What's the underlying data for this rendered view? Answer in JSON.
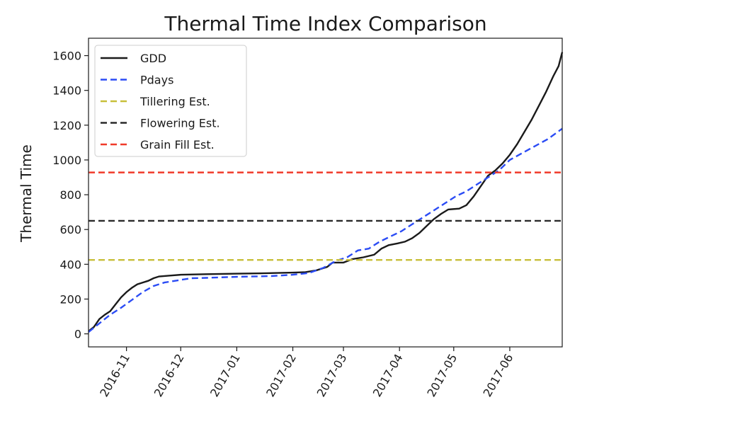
{
  "chart_data": {
    "type": "line",
    "title": "Thermal Time Index Comparison",
    "xlabel": "",
    "ylabel": "Thermal Time",
    "x_range": [
      "2016-10-11",
      "2017-06-30"
    ],
    "ylim": [
      -75,
      1700
    ],
    "y_ticks": [
      0,
      200,
      400,
      600,
      800,
      1000,
      1200,
      1400,
      1600
    ],
    "x_ticks": [
      {
        "date": "2016-11-01",
        "label": "2016-11"
      },
      {
        "date": "2016-12-01",
        "label": "2016-12"
      },
      {
        "date": "2017-01-01",
        "label": "2017-01"
      },
      {
        "date": "2017-02-01",
        "label": "2017-02"
      },
      {
        "date": "2017-03-01",
        "label": "2017-03"
      },
      {
        "date": "2017-04-01",
        "label": "2017-04"
      },
      {
        "date": "2017-05-01",
        "label": "2017-05"
      },
      {
        "date": "2017-06-01",
        "label": "2017-06"
      }
    ],
    "grid": false,
    "legend_position": "upper-left",
    "series": [
      {
        "name": "GDD",
        "color": "#1a1a1a",
        "style": "solid",
        "points": [
          [
            "2016-10-11",
            15
          ],
          [
            "2016-10-14",
            40
          ],
          [
            "2016-10-17",
            85
          ],
          [
            "2016-10-20",
            110
          ],
          [
            "2016-10-23",
            130
          ],
          [
            "2016-10-26",
            170
          ],
          [
            "2016-10-29",
            210
          ],
          [
            "2016-11-01",
            240
          ],
          [
            "2016-11-04",
            265
          ],
          [
            "2016-11-07",
            285
          ],
          [
            "2016-11-10",
            295
          ],
          [
            "2016-11-13",
            305
          ],
          [
            "2016-11-16",
            320
          ],
          [
            "2016-11-19",
            330
          ],
          [
            "2016-11-25",
            335
          ],
          [
            "2016-12-01",
            340
          ],
          [
            "2016-12-15",
            343
          ],
          [
            "2017-01-01",
            346
          ],
          [
            "2017-01-15",
            348
          ],
          [
            "2017-02-01",
            352
          ],
          [
            "2017-02-08",
            355
          ],
          [
            "2017-02-14",
            365
          ],
          [
            "2017-02-20",
            385
          ],
          [
            "2017-02-23",
            410
          ],
          [
            "2017-03-01",
            410
          ],
          [
            "2017-03-06",
            430
          ],
          [
            "2017-03-12",
            440
          ],
          [
            "2017-03-18",
            455
          ],
          [
            "2017-03-22",
            490
          ],
          [
            "2017-03-26",
            510
          ],
          [
            "2017-03-31",
            520
          ],
          [
            "2017-04-04",
            530
          ],
          [
            "2017-04-08",
            550
          ],
          [
            "2017-04-12",
            580
          ],
          [
            "2017-04-16",
            620
          ],
          [
            "2017-04-20",
            660
          ],
          [
            "2017-04-24",
            690
          ],
          [
            "2017-04-28",
            715
          ],
          [
            "2017-05-04",
            720
          ],
          [
            "2017-05-08",
            740
          ],
          [
            "2017-05-12",
            790
          ],
          [
            "2017-05-16",
            850
          ],
          [
            "2017-05-20",
            910
          ],
          [
            "2017-05-24",
            940
          ],
          [
            "2017-05-28",
            980
          ],
          [
            "2017-06-01",
            1030
          ],
          [
            "2017-06-05",
            1090
          ],
          [
            "2017-06-09",
            1160
          ],
          [
            "2017-06-13",
            1230
          ],
          [
            "2017-06-17",
            1310
          ],
          [
            "2017-06-21",
            1390
          ],
          [
            "2017-06-25",
            1480
          ],
          [
            "2017-06-28",
            1540
          ],
          [
            "2017-06-30",
            1620
          ]
        ]
      },
      {
        "name": "Pdays",
        "color": "#2b4cf5",
        "style": "dashed",
        "points": [
          [
            "2016-10-11",
            10
          ],
          [
            "2016-10-17",
            60
          ],
          [
            "2016-10-23",
            110
          ],
          [
            "2016-10-29",
            150
          ],
          [
            "2016-11-04",
            195
          ],
          [
            "2016-11-10",
            240
          ],
          [
            "2016-11-16",
            275
          ],
          [
            "2016-11-22",
            295
          ],
          [
            "2016-12-01",
            310
          ],
          [
            "2016-12-07",
            320
          ],
          [
            "2016-12-15",
            322
          ],
          [
            "2017-01-01",
            328
          ],
          [
            "2017-01-20",
            332
          ],
          [
            "2017-02-01",
            340
          ],
          [
            "2017-02-10",
            350
          ],
          [
            "2017-02-18",
            380
          ],
          [
            "2017-02-25",
            420
          ],
          [
            "2017-03-03",
            440
          ],
          [
            "2017-03-09",
            480
          ],
          [
            "2017-03-15",
            490
          ],
          [
            "2017-03-21",
            530
          ],
          [
            "2017-03-27",
            560
          ],
          [
            "2017-04-02",
            590
          ],
          [
            "2017-04-08",
            630
          ],
          [
            "2017-04-14",
            670
          ],
          [
            "2017-04-20",
            710
          ],
          [
            "2017-04-26",
            750
          ],
          [
            "2017-05-02",
            790
          ],
          [
            "2017-05-08",
            820
          ],
          [
            "2017-05-14",
            860
          ],
          [
            "2017-05-20",
            900
          ],
          [
            "2017-05-26",
            940
          ],
          [
            "2017-06-01",
            1000
          ],
          [
            "2017-06-08",
            1040
          ],
          [
            "2017-06-15",
            1080
          ],
          [
            "2017-06-22",
            1120
          ],
          [
            "2017-06-30",
            1180
          ]
        ]
      },
      {
        "name": "Tillering Est.",
        "color": "#c8bf3a",
        "style": "dashed",
        "hline": 425
      },
      {
        "name": "Flowering Est.",
        "color": "#2a2a2a",
        "style": "dashed",
        "hline": 650
      },
      {
        "name": "Grain Fill Est.",
        "color": "#f03a2a",
        "style": "dashed",
        "hline": 928
      }
    ]
  }
}
